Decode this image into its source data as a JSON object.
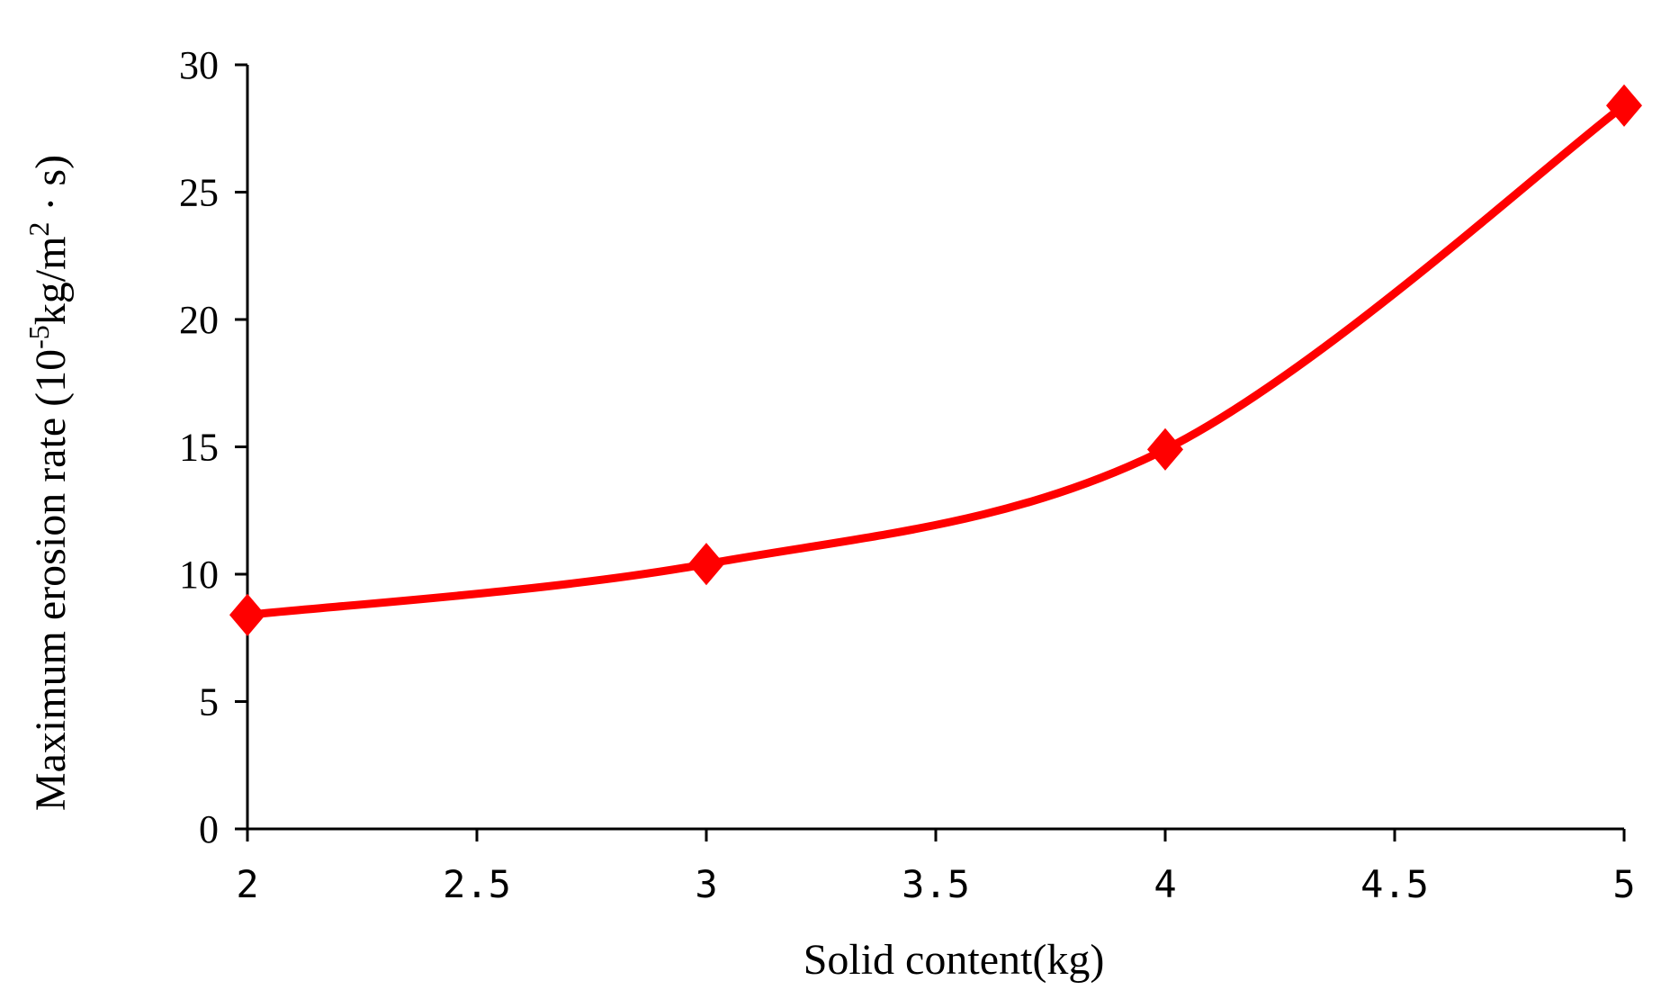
{
  "chart_data": {
    "type": "line",
    "title": "",
    "xlabel": "Solid content(kg)",
    "ylabel": "Maximum erosion rate (10⁻⁵kg/m² · s)",
    "ylabel_parts": {
      "pre": "Maximum erosion rate (10",
      "sup1": "-5",
      "mid": "kg/m",
      "sup2": "2",
      "post": " · s)"
    },
    "xlim": [
      2,
      5
    ],
    "ylim": [
      0,
      30
    ],
    "x_ticks": [
      2,
      2.5,
      3,
      3.5,
      4,
      4.5,
      5
    ],
    "x_tick_labels": [
      "2",
      "2.5",
      "3",
      "3.5",
      "4",
      "4.5",
      "5"
    ],
    "y_ticks": [
      0,
      5,
      10,
      15,
      20,
      25,
      30
    ],
    "y_tick_labels": [
      "0",
      "5",
      "10",
      "15",
      "20",
      "25",
      "30"
    ],
    "grid": false,
    "legend": "none",
    "series": [
      {
        "x": [
          2,
          3,
          4,
          5
        ],
        "values": [
          8.4,
          10.4,
          14.9,
          28.4
        ],
        "color": "#ff0000",
        "marker": "diamond",
        "smooth": true
      }
    ]
  }
}
